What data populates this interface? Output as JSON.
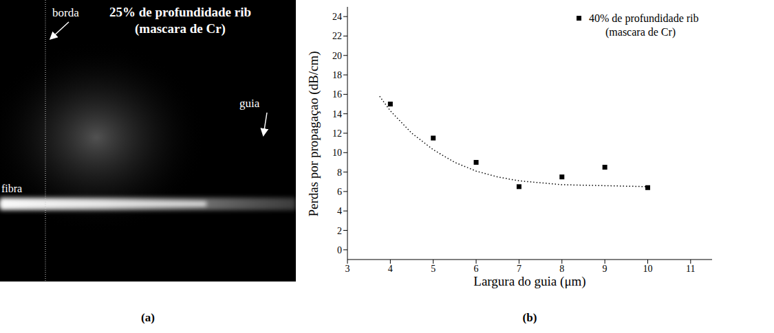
{
  "chart_data": {
    "type": "scatter",
    "xlabel": "Largura do guia (μm)",
    "ylabel": "Perdas por propagaçao (dB/cm)",
    "xlim": [
      3,
      11.5
    ],
    "xticks": [
      3,
      4,
      5,
      6,
      7,
      8,
      9,
      10,
      11
    ],
    "ylim": [
      -1,
      25
    ],
    "yticks": [
      0,
      2,
      4,
      6,
      8,
      10,
      12,
      14,
      16,
      18,
      20,
      22,
      24
    ],
    "legend": "upper right",
    "series": [
      {
        "name": "40% de profundidade rib (mascara de Cr)",
        "type": "scatter",
        "color": "#000000",
        "marker": "square",
        "x": [
          4,
          5,
          6,
          7,
          8,
          9,
          10
        ],
        "values": [
          15,
          11.5,
          9,
          6.5,
          7.5,
          8.5,
          6.4
        ]
      },
      {
        "type": "line",
        "line_style": "dotted",
        "color": "#000000",
        "x": [
          3.75,
          4,
          4.5,
          5,
          5.5,
          6,
          6.5,
          7,
          8,
          9,
          10
        ],
        "values": [
          15.8,
          14.3,
          12,
          10.3,
          9,
          8.1,
          7.5,
          7.1,
          6.7,
          6.6,
          6.5
        ]
      }
    ]
  },
  "photo": {
    "label_edge": "borda",
    "title": "25% de profundidade rib (mascara de Cr)",
    "label_waveguide": "guia",
    "label_fiber": "fibra"
  },
  "panel_labels": [
    "(a)",
    "(b)"
  ]
}
